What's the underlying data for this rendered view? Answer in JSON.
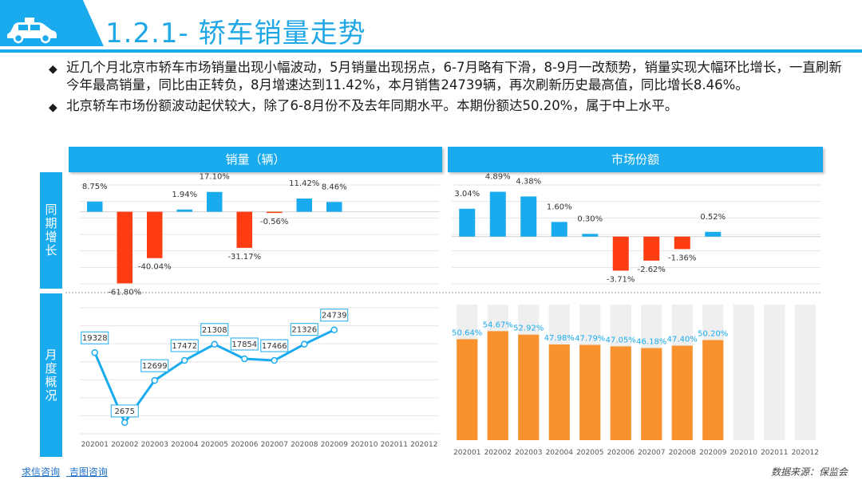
{
  "header": {
    "title": "1.2.1- 轿车销量走势",
    "accent": "#1aabee",
    "car_icon": "car-icon"
  },
  "bullets": [
    "近几个月北京市轿车市场销量出现小幅波动，5月销量出现拐点，6-7月略有下滑，8-9月一改颓势，销量实现大幅环比增长，一直刷新今年最高销量，同比由正转负，8月增速达到11.42%，本月销售24739辆，再次刷新历史最高值，同比增长8.46%。",
    "北京轿车市场份额波动起伏较大，除了6-8月份不及去年同期水平。本期份额达50.20%，属于中上水平。"
  ],
  "panels": {
    "sales_title": "销量（辆）",
    "share_title": "市场份额",
    "yoy_label": "同期增长",
    "month_label": "月度概况"
  },
  "footer": {
    "link1": "求信咨询",
    "link2": "吉图咨询",
    "source": "数据来源：保监会"
  },
  "chart_data": [
    {
      "id": "sales-yoy",
      "type": "bar",
      "title": "销量（辆）",
      "ylabel": "同期增长",
      "categories": [
        "202001",
        "202002",
        "202003",
        "202004",
        "202005",
        "202006",
        "202007",
        "202008",
        "202009",
        "202010",
        "202011",
        "202012"
      ],
      "values": [
        8.75,
        -61.8,
        -40.04,
        1.94,
        17.1,
        -31.17,
        -0.56,
        11.42,
        8.46,
        null,
        null,
        null
      ],
      "labels": [
        "8.75%",
        "-61.80%",
        "-40.04%",
        "1.94%",
        "17.10%",
        "-31.17%",
        "-0.56%",
        "11.42%",
        "8.46%",
        "",
        "",
        ""
      ],
      "ylim": [
        -65,
        30
      ],
      "positive_color": "#1aabee",
      "negative_color": "#ff3d12"
    },
    {
      "id": "share-yoy",
      "type": "bar",
      "title": "市场份额",
      "ylabel": "同期增长",
      "categories": [
        "202001",
        "202002",
        "202003",
        "202004",
        "202005",
        "202006",
        "202007",
        "202008",
        "202009",
        "202010",
        "202011",
        "202012"
      ],
      "values": [
        3.04,
        4.89,
        4.38,
        1.6,
        0.3,
        -3.71,
        -2.62,
        -1.36,
        0.52,
        null,
        null,
        null
      ],
      "labels": [
        "3.04%",
        "4.89%",
        "4.38%",
        "1.60%",
        "0.30%",
        "-3.71%",
        "-2.62%",
        "-1.36%",
        "0.52%",
        "",
        "",
        ""
      ],
      "ylim": [
        -5.5,
        6.5
      ],
      "positive_color": "#1aabee",
      "negative_color": "#ff3d12"
    },
    {
      "id": "sales-month",
      "type": "line",
      "title": "销量（辆）",
      "ylabel": "月度概况",
      "categories": [
        "202001",
        "202002",
        "202003",
        "202004",
        "202005",
        "202006",
        "202007",
        "202008",
        "202009",
        "202010",
        "202011",
        "202012"
      ],
      "values": [
        19328,
        2675,
        12699,
        17472,
        21308,
        17854,
        17466,
        21326,
        24739,
        null,
        null,
        null
      ],
      "labels": [
        "19328",
        "2675",
        "12699",
        "17472",
        "21308",
        "17854",
        "17466",
        "21326",
        "24739",
        "",
        "",
        ""
      ],
      "ylim": [
        0,
        30000
      ],
      "color": "#1aabee"
    },
    {
      "id": "share-month",
      "type": "bar",
      "title": "市场份额",
      "ylabel": "月度概况",
      "categories": [
        "202001",
        "202002",
        "202003",
        "202004",
        "202005",
        "202006",
        "202007",
        "202008",
        "202009",
        "202010",
        "202011",
        "202012"
      ],
      "values": [
        50.64,
        54.67,
        52.92,
        47.98,
        47.79,
        47.05,
        46.18,
        47.4,
        50.2,
        null,
        null,
        null
      ],
      "labels": [
        "50.64%",
        "54.67%",
        "52.92%",
        "47.98%",
        "47.79%",
        "47.05%",
        "46.18%",
        "47.40%",
        "50.20%",
        "",
        "",
        ""
      ],
      "ylim": [
        0,
        68
      ],
      "color": "#f7922e",
      "background_color": "#efefef",
      "label_color": "#1aabee"
    }
  ]
}
